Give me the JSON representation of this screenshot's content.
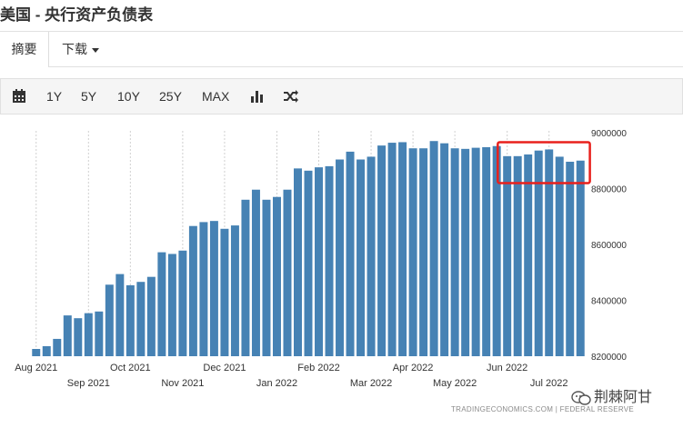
{
  "header": {
    "title": "美国 - 央行资产负债表"
  },
  "tabs": [
    {
      "label": "摘要"
    },
    {
      "label": "下载"
    }
  ],
  "toolbar": {
    "calendar_icon": "calendar-icon",
    "ranges": [
      "1Y",
      "5Y",
      "10Y",
      "25Y",
      "MAX"
    ],
    "chart_type_icon": "bar-chart-icon",
    "compare_icon": "shuffle-icon"
  },
  "chart_data": {
    "type": "bar",
    "title": "",
    "xlabel": "",
    "ylabel": "",
    "color": "#4682b4",
    "ylim": [
      8200000,
      9000000
    ],
    "yticks": [
      8200000,
      8400000,
      8600000,
      8800000,
      9000000
    ],
    "ytick_labels": [
      "8200000",
      "8400000",
      "8600000",
      "8800000",
      "9000000"
    ],
    "grid": "vertical",
    "x_tick_labels_upper": [
      {
        "label": "Aug 2021",
        "index": 0
      },
      {
        "label": "Oct 2021",
        "index": 9
      },
      {
        "label": "Dec 2021",
        "index": 18
      },
      {
        "label": "Feb 2022",
        "index": 27
      },
      {
        "label": "Apr 2022",
        "index": 36
      },
      {
        "label": "Jun 2022",
        "index": 45
      }
    ],
    "x_tick_labels_lower": [
      {
        "label": "Sep 2021",
        "index": 5
      },
      {
        "label": "Nov 2021",
        "index": 14
      },
      {
        "label": "Jan 2022",
        "index": 23
      },
      {
        "label": "Mar 2022",
        "index": 32
      },
      {
        "label": "May 2022",
        "index": 40
      },
      {
        "label": "Jul 2022",
        "index": 49
      }
    ],
    "values": [
      8226000,
      8236000,
      8262000,
      8346000,
      8336000,
      8354000,
      8360000,
      8456000,
      8494000,
      8454000,
      8466000,
      8484000,
      8572000,
      8566000,
      8578000,
      8666000,
      8680000,
      8684000,
      8656000,
      8668000,
      8760000,
      8796000,
      8760000,
      8770000,
      8796000,
      8872000,
      8864000,
      8876000,
      8880000,
      8904000,
      8932000,
      8904000,
      8914000,
      8954000,
      8964000,
      8966000,
      8944000,
      8944000,
      8970000,
      8962000,
      8944000,
      8942000,
      8946000,
      8948000,
      8952000,
      8916000,
      8916000,
      8922000,
      8936000,
      8940000,
      8914000,
      8896000,
      8900000
    ],
    "highlight": {
      "from_index": 45,
      "to_index": 52,
      "color": "#e8201c"
    }
  },
  "footer": {
    "source": "TRADINGECONOMICS.COM  |  FEDERAL RESERVE",
    "watermark": "荆棘阿甘"
  }
}
